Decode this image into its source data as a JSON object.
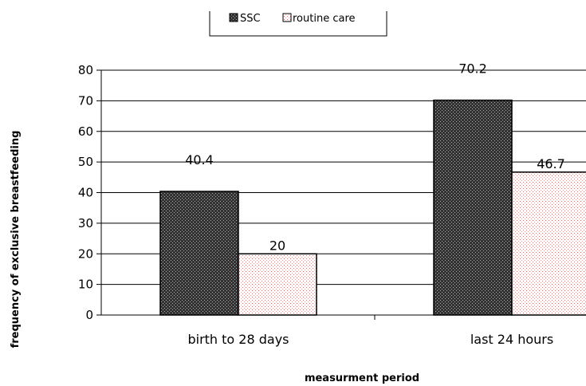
{
  "chart_data": {
    "type": "bar",
    "categories": [
      "birth to 28 days",
      "last 24 hours"
    ],
    "series": [
      {
        "name": "SSC",
        "values": [
          40.4,
          70.2
        ],
        "pattern": "dark-crosshatch",
        "color": "#1a1a1a"
      },
      {
        "name": "routine care",
        "values": [
          20,
          46.7
        ],
        "pattern": "light-red-dots",
        "color": "#d07070"
      }
    ],
    "data_labels": [
      "40.4",
      "70.2",
      "20",
      "46.7"
    ],
    "xlabel": "measurment period",
    "ylabel": "frequency of exclusive breastfeeding",
    "ylim": [
      0,
      80
    ],
    "yticks": [
      0,
      10,
      20,
      30,
      40,
      50,
      60,
      70,
      80
    ],
    "grid": "horizontal",
    "legend_position": "top-center"
  }
}
